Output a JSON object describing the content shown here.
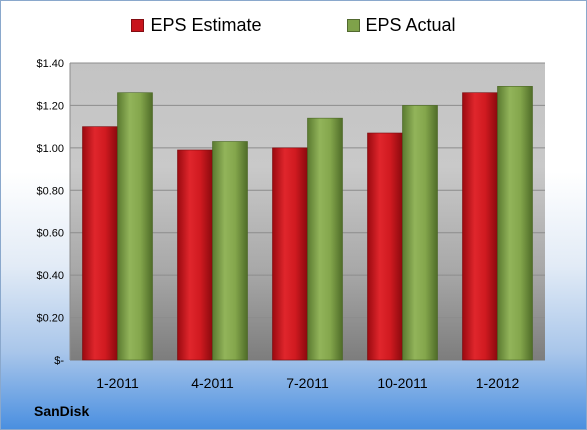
{
  "chart_data": {
    "type": "bar",
    "categories": [
      "1-2011",
      "4-2011",
      "7-2011",
      "10-2011",
      "1-2012"
    ],
    "series": [
      {
        "name": "EPS Estimate",
        "values": [
          1.1,
          0.99,
          1.0,
          1.07,
          1.26
        ],
        "color": "#c8141c"
      },
      {
        "name": "EPS Actual",
        "values": [
          1.26,
          1.03,
          1.14,
          1.2,
          1.29
        ],
        "color": "#7fa24a"
      }
    ],
    "y_ticks": [
      "$-",
      "$0.20",
      "$0.40",
      "$0.60",
      "$0.80",
      "$1.00",
      "$1.20",
      "$1.40"
    ],
    "ylim": [
      0,
      1.4
    ],
    "ytick_step": 0.2,
    "grid": true,
    "legend_position": "top"
  },
  "company": "SanDisk"
}
